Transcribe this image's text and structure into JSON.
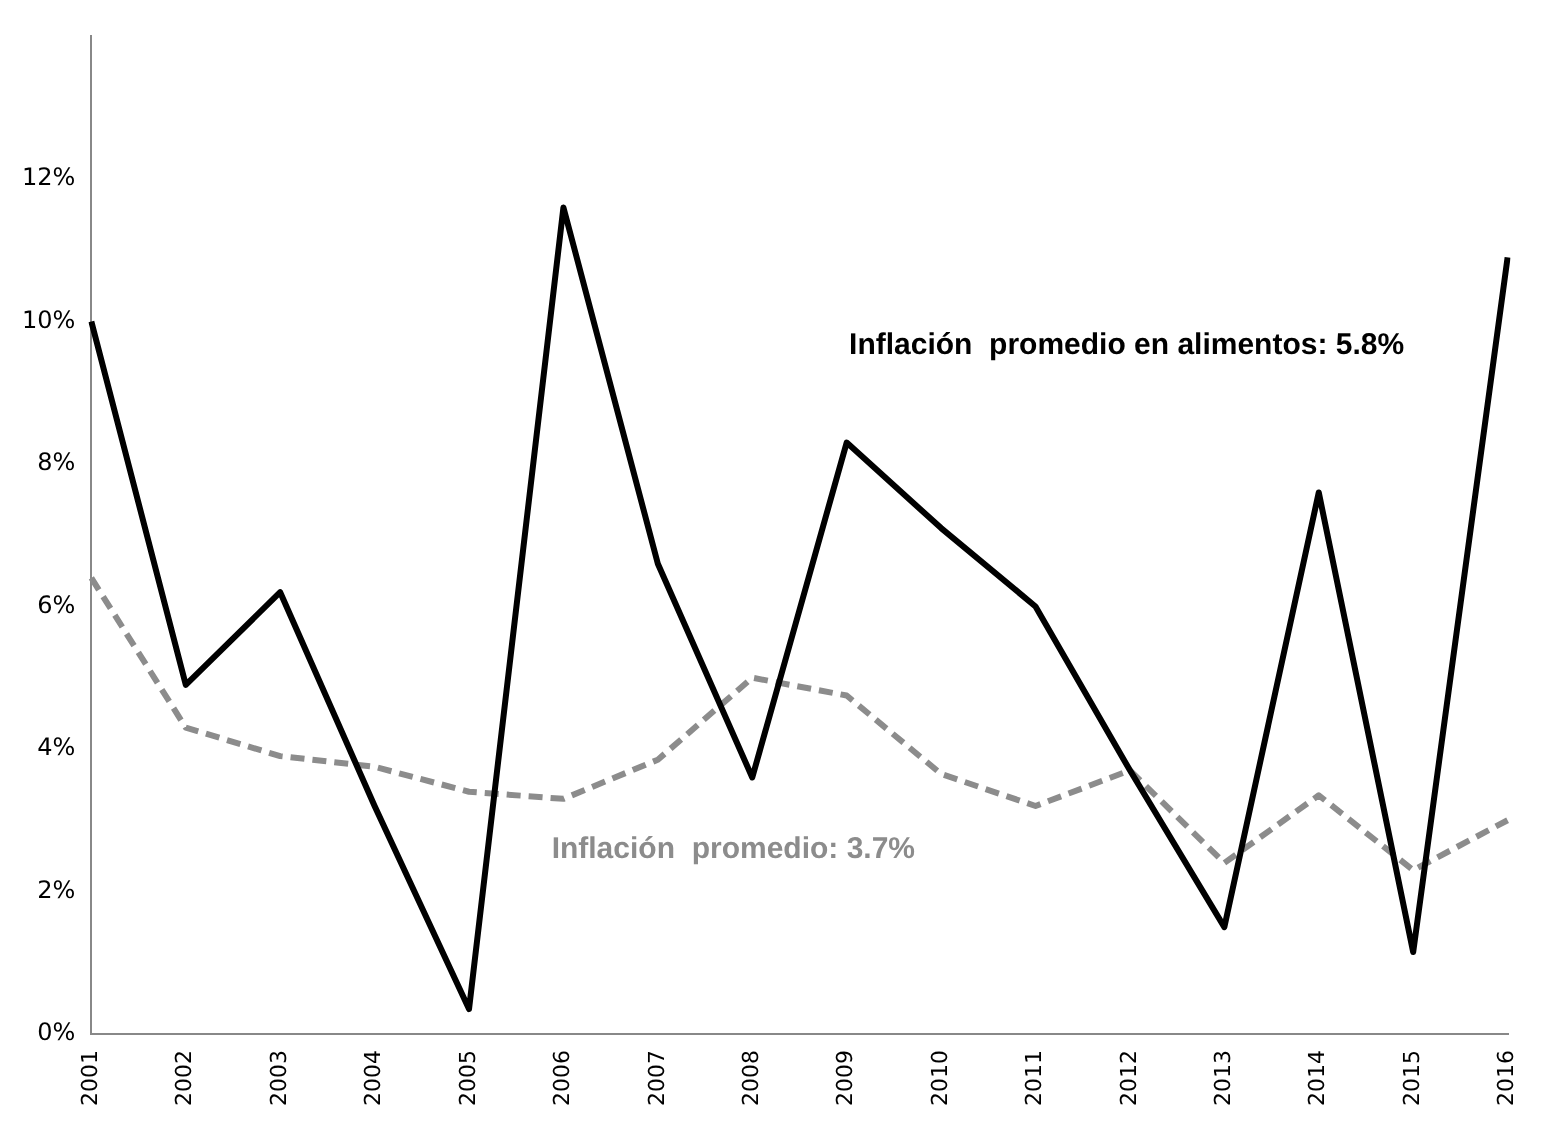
{
  "chart_data": {
    "type": "line",
    "categories": [
      "2001",
      "2002",
      "2003",
      "2004",
      "2005",
      "2006",
      "2007",
      "2008",
      "2009",
      "2010",
      "2011",
      "2012",
      "2013",
      "2014",
      "2015",
      "2016"
    ],
    "series": [
      {
        "name": "Inflación  promedio en alimentos: 5.8%",
        "color": "#000000",
        "line_style": "solid",
        "values": [
          10.0,
          4.9,
          6.2,
          3.2,
          0.35,
          11.6,
          6.6,
          3.6,
          8.3,
          7.1,
          6.0,
          3.7,
          1.5,
          7.6,
          1.15,
          10.9
        ]
      },
      {
        "name": "Inflación  promedio: 3.7%",
        "color": "#8c8c8c",
        "line_style": "dashed",
        "values": [
          6.4,
          4.3,
          3.9,
          3.75,
          3.4,
          3.3,
          3.85,
          5.0,
          4.75,
          3.65,
          3.2,
          3.7,
          2.4,
          3.35,
          2.3,
          3.0
        ]
      }
    ],
    "ylim": [
      0,
      14
    ],
    "yticks": [
      {
        "value": 0,
        "label": "0%"
      },
      {
        "value": 2,
        "label": "2%"
      },
      {
        "value": 4,
        "label": "4%"
      },
      {
        "value": 6,
        "label": "6%"
      },
      {
        "value": 8,
        "label": "8%"
      },
      {
        "value": 10,
        "label": "10%"
      },
      {
        "value": 12,
        "label": "12%"
      }
    ],
    "grid": false,
    "legend": false,
    "marker": "none"
  }
}
